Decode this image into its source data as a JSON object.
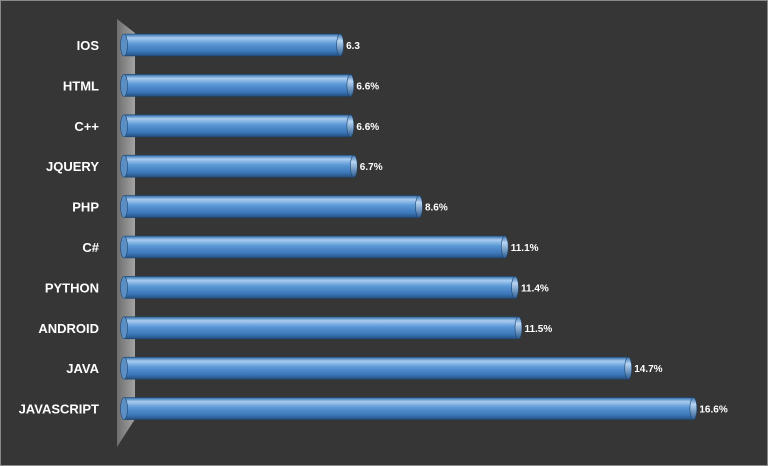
{
  "chart_data": {
    "type": "bar",
    "orientation": "horizontal",
    "categories": [
      "IOS",
      "HTML",
      "C++",
      "JQUERY",
      "PHP",
      "C#",
      "PYTHON",
      "ANDROID",
      "JAVA",
      "JAVASCRIPT"
    ],
    "values": [
      6.3,
      6.6,
      6.6,
      6.7,
      8.6,
      11.1,
      11.4,
      11.5,
      14.7,
      16.6
    ],
    "value_labels": [
      "6.3",
      "6.6%",
      "6.6%",
      "6.7%",
      "8.6%",
      "11.1%",
      "11.4%",
      "11.5%",
      "14.7%",
      "16.6%"
    ],
    "xlim": [
      0,
      17.5
    ],
    "grid": false,
    "legend": "none",
    "colors": {
      "background": "#363636",
      "bar": "#4a86c6",
      "bar_highlight": "#a9ccef",
      "bar_shadow": "#24507f",
      "wall": "#8c8c8c",
      "text": "#ffffff"
    }
  }
}
